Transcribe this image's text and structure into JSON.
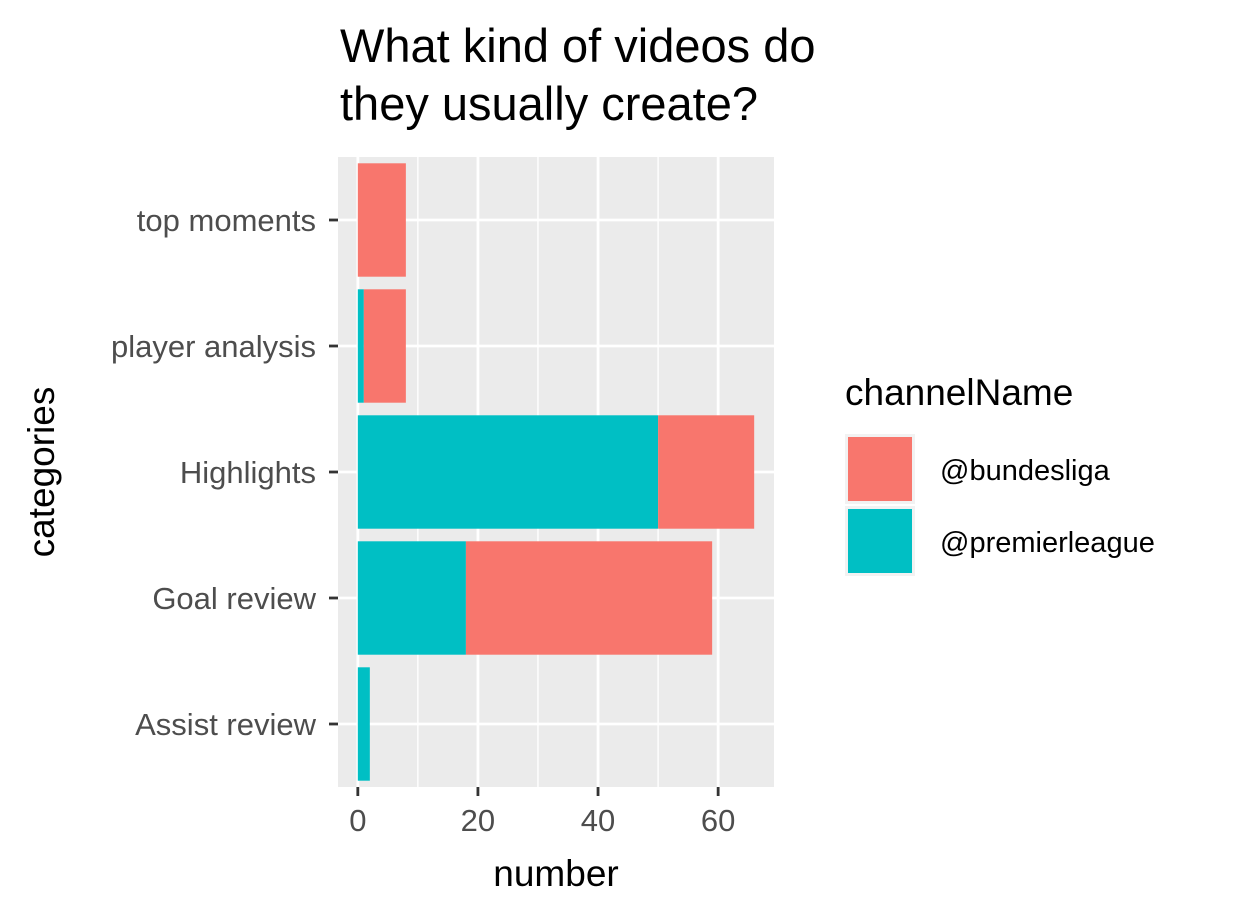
{
  "chart_data": {
    "type": "bar",
    "orientation": "horizontal",
    "stacked": true,
    "title": [
      "What kind of videos do",
      "they usually create?"
    ],
    "xlabel": "number",
    "ylabel": "categories",
    "categories": [
      "Assist review",
      "Goal review",
      "Highlights",
      "player analysis",
      "top moments"
    ],
    "series": [
      {
        "name": "@premierleague",
        "color": "#00BFC4",
        "values": [
          2,
          18,
          50,
          1,
          0
        ]
      },
      {
        "name": "@bundesliga",
        "color": "#F8766D",
        "values": [
          0,
          41,
          16,
          7,
          8
        ]
      }
    ],
    "xlim": [
      -3.3,
      69.3
    ],
    "xticks": [
      0,
      20,
      40,
      60
    ],
    "xtick_labels": [
      "0",
      "20",
      "40",
      "60"
    ],
    "grid": true,
    "legend": {
      "title": "channelName",
      "position": "right",
      "entries": [
        {
          "label": "@bundesliga",
          "color": "#F8766D"
        },
        {
          "label": "@premierleague",
          "color": "#00BFC4"
        }
      ]
    },
    "panel_background": "#EBEBEB"
  }
}
